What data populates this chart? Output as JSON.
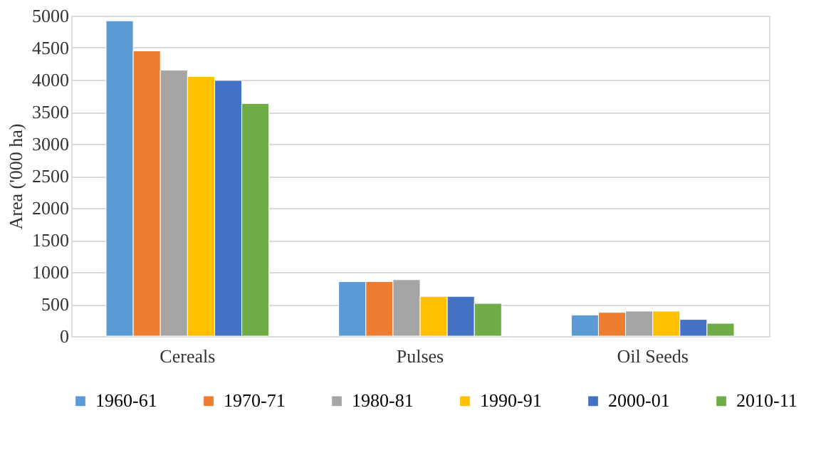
{
  "chart_data": {
    "type": "bar",
    "ylabel": "Area ('000 ha)",
    "categories": [
      "Cereals",
      "Pulses",
      "Oil Seeds"
    ],
    "series": [
      {
        "name": "1960-61",
        "color": "#5b9bd5",
        "values": [
          4920,
          850,
          330
        ]
      },
      {
        "name": "1970-71",
        "color": "#ed7d31",
        "values": [
          4450,
          850,
          370
        ]
      },
      {
        "name": "1980-81",
        "color": "#a5a5a5",
        "values": [
          4150,
          880,
          390
        ]
      },
      {
        "name": "1990-91",
        "color": "#ffc000",
        "values": [
          4050,
          620,
          390
        ]
      },
      {
        "name": "2000-01",
        "color": "#4472c4",
        "values": [
          3990,
          620,
          260
        ]
      },
      {
        "name": "2010-11",
        "color": "#70ad47",
        "values": [
          3630,
          510,
          200
        ]
      }
    ],
    "ylim": [
      0,
      5000
    ],
    "yticks": [
      0,
      500,
      1000,
      1500,
      2000,
      2500,
      3000,
      3500,
      4000,
      4500,
      5000
    ],
    "grid": "y",
    "legend": "bottom"
  }
}
